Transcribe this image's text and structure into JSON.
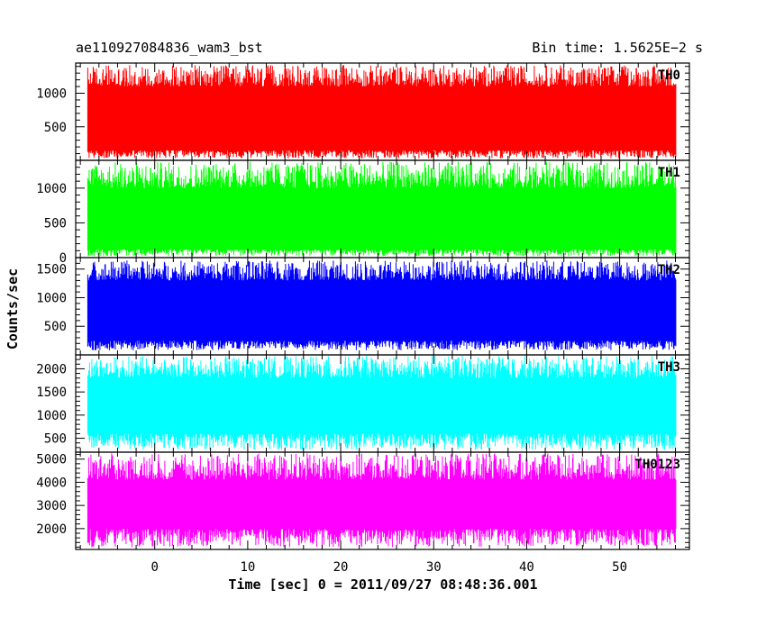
{
  "header": {
    "title": "ae110927084836_wam3_bst",
    "bin_time": "Bin time: 1.5625E−2 s"
  },
  "chart_data": {
    "type": "line",
    "description_note": "",
    "xlabel": "Time [sec] 0 = 2011/09/27 08:48:36.001",
    "ylabel": "Counts/sec",
    "xlim": [
      -8.5,
      57.5
    ],
    "data_xrange": [
      -7.2,
      56.0
    ],
    "x_ticks": [
      0,
      10,
      20,
      30,
      40,
      50
    ],
    "x_tick_labels": [
      "0",
      "10",
      "20",
      "30",
      "40",
      "50"
    ],
    "grid": false,
    "panels": [
      {
        "name": "TH0",
        "color": "#ff0000",
        "ylim": [
          0,
          1450
        ],
        "y_ticks": [
          500,
          1000
        ],
        "y_tick_labels": [
          "500",
          "1000"
        ],
        "level_low": 150,
        "level_high": 1100,
        "spike_min": 30,
        "spike_max": 1420
      },
      {
        "name": "TH1",
        "color": "#00ff00",
        "ylim": [
          0,
          1400
        ],
        "y_ticks": [
          0,
          500,
          1000
        ],
        "y_tick_labels": [
          "0",
          "500",
          "1000"
        ],
        "level_low": 120,
        "level_high": 1000,
        "spike_min": 20,
        "spike_max": 1380
      },
      {
        "name": "TH2",
        "color": "#0000ff",
        "ylim": [
          0,
          1700
        ],
        "y_ticks": [
          500,
          1000,
          1500
        ],
        "y_tick_labels": [
          "500",
          "1000",
          "1500"
        ],
        "level_low": 250,
        "level_high": 1300,
        "spike_min": 80,
        "spike_max": 1650
      },
      {
        "name": "TH3",
        "color": "#00ffff",
        "ylim": [
          200,
          2300
        ],
        "y_ticks": [
          500,
          1000,
          1500,
          2000
        ],
        "y_tick_labels": [
          "500",
          "1000",
          "1500",
          "2000"
        ],
        "level_low": 600,
        "level_high": 1800,
        "spike_min": 250,
        "spike_max": 2280
      },
      {
        "name": "TH0123",
        "color": "#ff00ff",
        "ylim": [
          1100,
          5300
        ],
        "y_ticks": [
          2000,
          3000,
          4000,
          5000
        ],
        "y_tick_labels": [
          "2000",
          "3000",
          "4000",
          "5000"
        ],
        "level_low": 2000,
        "level_high": 4100,
        "spike_min": 1200,
        "spike_max": 5250
      }
    ]
  }
}
